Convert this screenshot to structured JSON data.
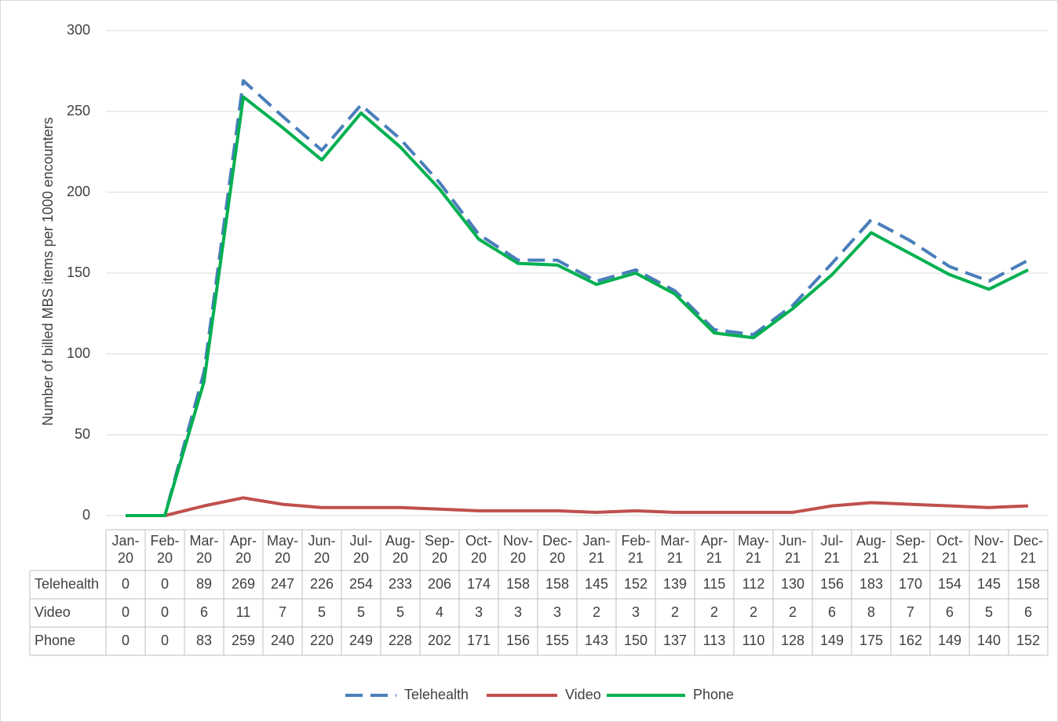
{
  "chart_data": {
    "type": "line",
    "y_label": "Number of billed MBS items per 1000 encounters",
    "categories": [
      "Jan-20",
      "Feb-20",
      "Mar-20",
      "Apr-20",
      "May-20",
      "Jun-20",
      "Jul-20",
      "Aug-20",
      "Sep-20",
      "Oct-20",
      "Nov-20",
      "Dec-20",
      "Jan-21",
      "Feb-21",
      "Mar-21",
      "Apr-21",
      "May-21",
      "Jun-21",
      "Jul-21",
      "Aug-21",
      "Sep-21",
      "Oct-21",
      "Nov-21",
      "Dec-21"
    ],
    "series": [
      {
        "name": "Telehealth",
        "color": "#4a7ebb",
        "dashed": true,
        "values": [
          0,
          0,
          89,
          269,
          247,
          226,
          254,
          233,
          206,
          174,
          158,
          158,
          145,
          152,
          139,
          115,
          112,
          130,
          156,
          183,
          170,
          154,
          145,
          158
        ]
      },
      {
        "name": "Video",
        "color": "#c0504d",
        "dashed": false,
        "values": [
          0,
          0,
          6,
          11,
          7,
          5,
          5,
          5,
          4,
          3,
          3,
          3,
          2,
          3,
          2,
          2,
          2,
          2,
          6,
          8,
          7,
          6,
          5,
          6
        ]
      },
      {
        "name": "Phone",
        "color": "#00b050",
        "dashed": false,
        "values": [
          0,
          0,
          83,
          259,
          240,
          220,
          249,
          228,
          202,
          171,
          156,
          155,
          143,
          150,
          137,
          113,
          110,
          128,
          149,
          175,
          162,
          149,
          140,
          152
        ]
      }
    ],
    "ylim": [
      0,
      300
    ],
    "yticks": [
      0,
      50,
      100,
      150,
      200,
      250,
      300
    ],
    "grid": true
  }
}
